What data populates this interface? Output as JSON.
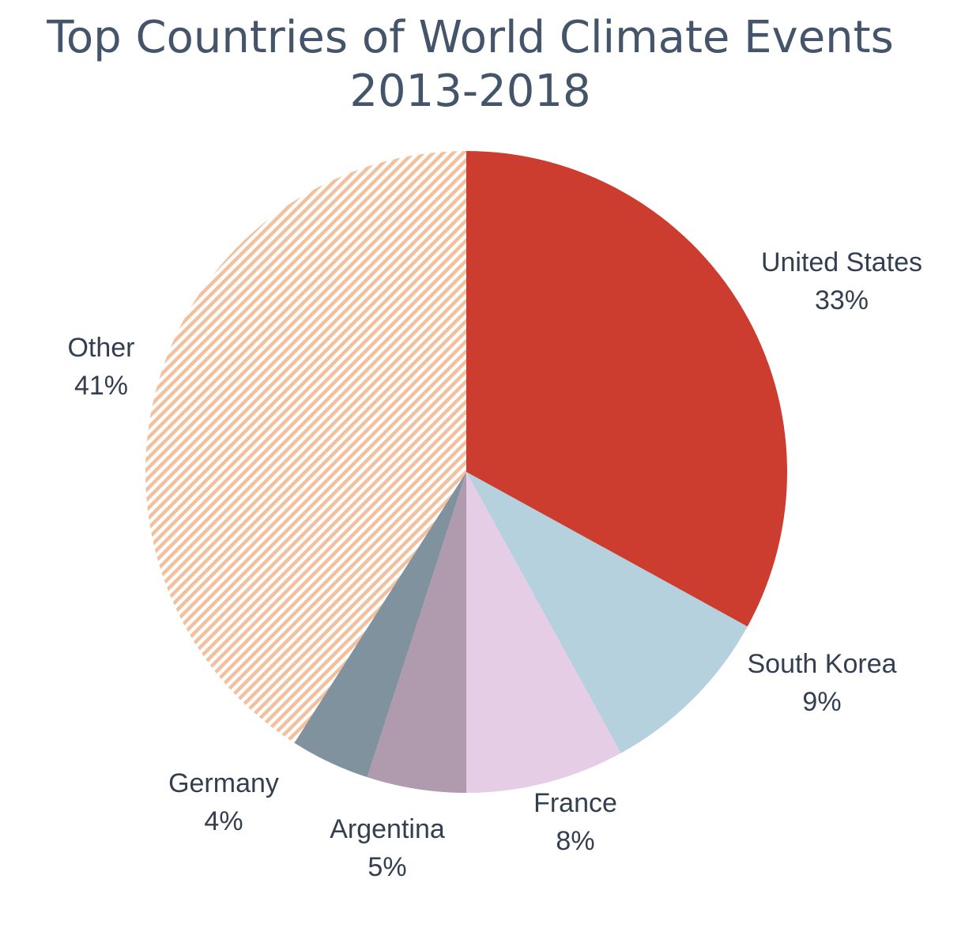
{
  "chart_data": {
    "type": "pie",
    "title_lines": [
      "Top Countries of World Climate Events",
      "2013-2018"
    ],
    "start": "12 o'clock",
    "direction": "clockwise",
    "slices": [
      {
        "label": "United States",
        "value": 33,
        "display": "33%",
        "color": "#cc3d2f",
        "pattern": "solid"
      },
      {
        "label": "South Korea",
        "value": 9,
        "display": "9%",
        "color": "#b5d1de",
        "pattern": "solid"
      },
      {
        "label": "France",
        "value": 8,
        "display": "8%",
        "color": "#e6cde6",
        "pattern": "solid"
      },
      {
        "label": "Argentina",
        "value": 5,
        "display": "5%",
        "color": "#b09aad",
        "pattern": "solid"
      },
      {
        "label": "Germany",
        "value": 4,
        "display": "4%",
        "color": "#7f929d",
        "pattern": "solid"
      },
      {
        "label": "Other",
        "value": 41,
        "display": "41%",
        "color": "#f2c09c",
        "pattern": "diagonal-stripes"
      }
    ]
  }
}
